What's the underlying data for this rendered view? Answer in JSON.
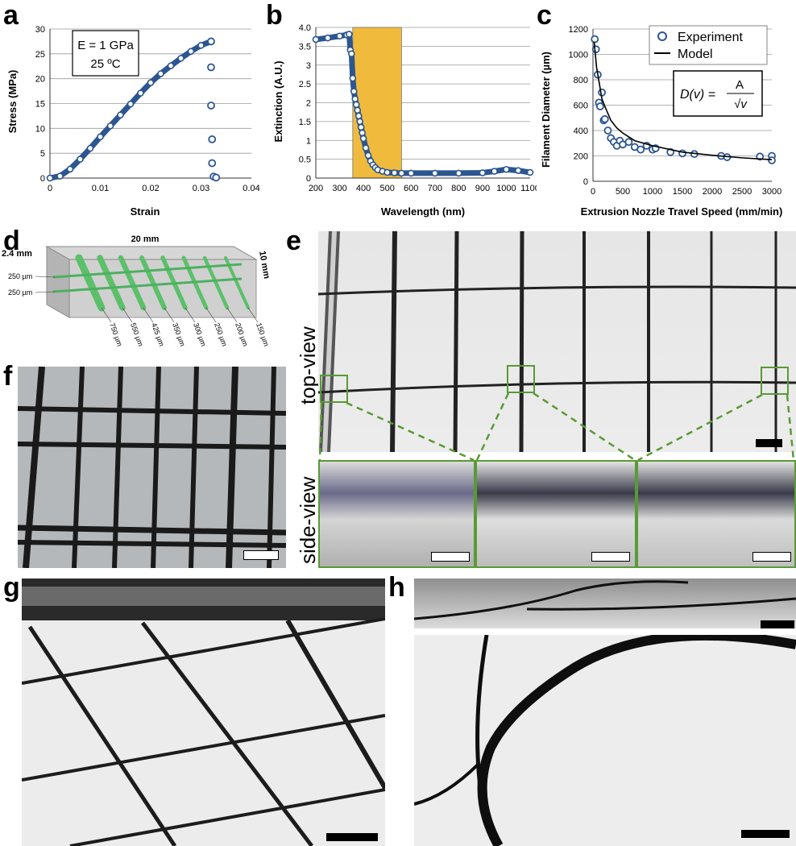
{
  "panels": {
    "a": "a",
    "b": "b",
    "c": "c",
    "d": "d",
    "e": "e",
    "f": "f",
    "g": "g",
    "h": "h"
  },
  "chart_data": [
    {
      "type": "scatter",
      "id": "a",
      "xlabel": "Strain",
      "ylabel": "Stress (MPa)",
      "xlim": [
        0,
        0.04
      ],
      "ylim": [
        0,
        30
      ],
      "xticks": [
        0,
        0.01,
        0.02,
        0.03,
        0.04
      ],
      "xtick_labels": [
        "0",
        "0.01",
        "0.02",
        "0.03",
        "0.04"
      ],
      "yticks": [
        0,
        5,
        10,
        15,
        20,
        25,
        30
      ],
      "ytick_labels": [
        "0",
        "5",
        "10",
        "15",
        "20",
        "25",
        "30"
      ],
      "grid": "horizontal",
      "annotation": [
        "E = 1 GPa",
        "25 ºC"
      ],
      "series": [
        {
          "color": "#2c5690",
          "x": [
            0.0,
            0.002,
            0.004,
            0.006,
            0.008,
            0.01,
            0.012,
            0.014,
            0.016,
            0.018,
            0.02,
            0.022,
            0.024,
            0.026,
            0.028,
            0.03,
            0.032
          ],
          "y": [
            0.0,
            0.4,
            1.8,
            3.8,
            6.0,
            8.3,
            10.5,
            12.7,
            14.9,
            17.1,
            19.2,
            21.0,
            22.6,
            24.1,
            25.5,
            26.7,
            27.5
          ]
        },
        {
          "color": "#2c5690",
          "hollow": true,
          "x": [
            0.032,
            0.032,
            0.032,
            0.0322,
            0.0322,
            0.0325,
            0.033
          ],
          "y": [
            27.5,
            22.3,
            14.6,
            7.8,
            3.0,
            0.3,
            0.1
          ]
        }
      ]
    },
    {
      "type": "scatter",
      "id": "b",
      "xlabel": "Wavelength (nm)",
      "ylabel": "Extinction (A.U.)",
      "xlim": [
        200,
        1100
      ],
      "ylim": [
        0,
        4.0
      ],
      "xticks": [
        200,
        300,
        400,
        500,
        600,
        700,
        800,
        900,
        1000,
        1100
      ],
      "xtick_labels": [
        "200",
        "300",
        "400",
        "500",
        "600",
        "700",
        "800",
        "900",
        "1000",
        "1100"
      ],
      "yticks": [
        0,
        0.5,
        1.0,
        1.5,
        2.0,
        2.5,
        3.0,
        3.5,
        4.0
      ],
      "ytick_labels": [
        "0",
        "0.5",
        "1",
        "1.5",
        "2",
        "2.5",
        "3",
        "3.5",
        "4.0"
      ],
      "grid": "horizontal",
      "highlight_band": [
        355,
        560
      ],
      "highlight_color": "#f0bb3c",
      "series": [
        {
          "color": "#2c5690",
          "x": [
            200,
            250,
            300,
            330,
            340,
            345,
            350,
            355,
            360,
            365,
            370,
            375,
            380,
            385,
            390,
            395,
            400,
            410,
            420,
            430,
            440,
            450,
            460,
            480,
            500,
            530,
            560,
            600,
            700,
            800,
            900,
            950,
            1000,
            1050,
            1100
          ],
          "y": [
            3.68,
            3.72,
            3.77,
            3.8,
            3.82,
            3.4,
            3.3,
            2.65,
            2.3,
            2.1,
            1.95,
            1.8,
            1.65,
            1.5,
            1.35,
            1.2,
            1.05,
            0.8,
            0.6,
            0.45,
            0.35,
            0.28,
            0.22,
            0.18,
            0.15,
            0.14,
            0.13,
            0.13,
            0.13,
            0.13,
            0.14,
            0.18,
            0.23,
            0.2,
            0.15
          ]
        }
      ]
    },
    {
      "type": "scatter",
      "id": "c",
      "xlabel": "Extrusion Nozzle Travel Speed (mm/min)",
      "ylabel": "Filament Diameter (µm)",
      "xlim": [
        0,
        3000
      ],
      "ylim": [
        0,
        1200
      ],
      "xticks": [
        0,
        500,
        1000,
        1500,
        2000,
        2500,
        3000
      ],
      "xtick_labels": [
        "0",
        "500",
        "1000",
        "1500",
        "2000",
        "2500",
        "3000"
      ],
      "yticks": [
        0,
        200,
        400,
        600,
        800,
        1000,
        1200
      ],
      "ytick_labels": [
        "0",
        "200",
        "400",
        "600",
        "800",
        "1000",
        "1200"
      ],
      "grid": "horizontal",
      "legend": "top-right",
      "equation": [
        "D(v) = ",
        "A",
        "√v"
      ],
      "series": [
        {
          "name": "Experiment",
          "color": "#2c5690",
          "hollow": true,
          "x": [
            30,
            50,
            80,
            100,
            120,
            150,
            180,
            200,
            250,
            300,
            350,
            400,
            450,
            500,
            600,
            700,
            800,
            900,
            1000,
            1050,
            1300,
            1500,
            1700,
            2150,
            2250,
            2800,
            3000,
            3000
          ],
          "y": [
            1120,
            1040,
            840,
            620,
            590,
            700,
            480,
            490,
            400,
            340,
            310,
            280,
            320,
            290,
            310,
            270,
            250,
            280,
            250,
            260,
            230,
            220,
            215,
            200,
            190,
            195,
            200,
            165
          ]
        },
        {
          "name": "Model",
          "color": "#000000",
          "line": true,
          "x": [
            20,
            40,
            60,
            100,
            150,
            200,
            300,
            400,
            500,
            700,
            1000,
            1500,
            2000,
            2500,
            3000
          ],
          "y": [
            1100,
            1000,
            900,
            790,
            650,
            590,
            480,
            420,
            380,
            320,
            280,
            230,
            205,
            185,
            170
          ]
        }
      ]
    }
  ],
  "panel_d": {
    "dim_width": "20 mm",
    "dim_height": "2.4 mm",
    "dim_depth": "10 mm",
    "row_labels": [
      "250 µm",
      "250 µm"
    ],
    "channel_labels": [
      "750 µm",
      "550 µm",
      "425 µm",
      "350 µm",
      "300 µm",
      "250 µm",
      "200 µm",
      "150 µm"
    ]
  },
  "panel_e": {
    "top_label": "top-view",
    "side_label": "side-view"
  },
  "colors": {
    "marker": "#2c5690",
    "highlight": "#f0bb3c",
    "zoom_box": "#5a9a35",
    "channel_green": "#5cc06a"
  }
}
